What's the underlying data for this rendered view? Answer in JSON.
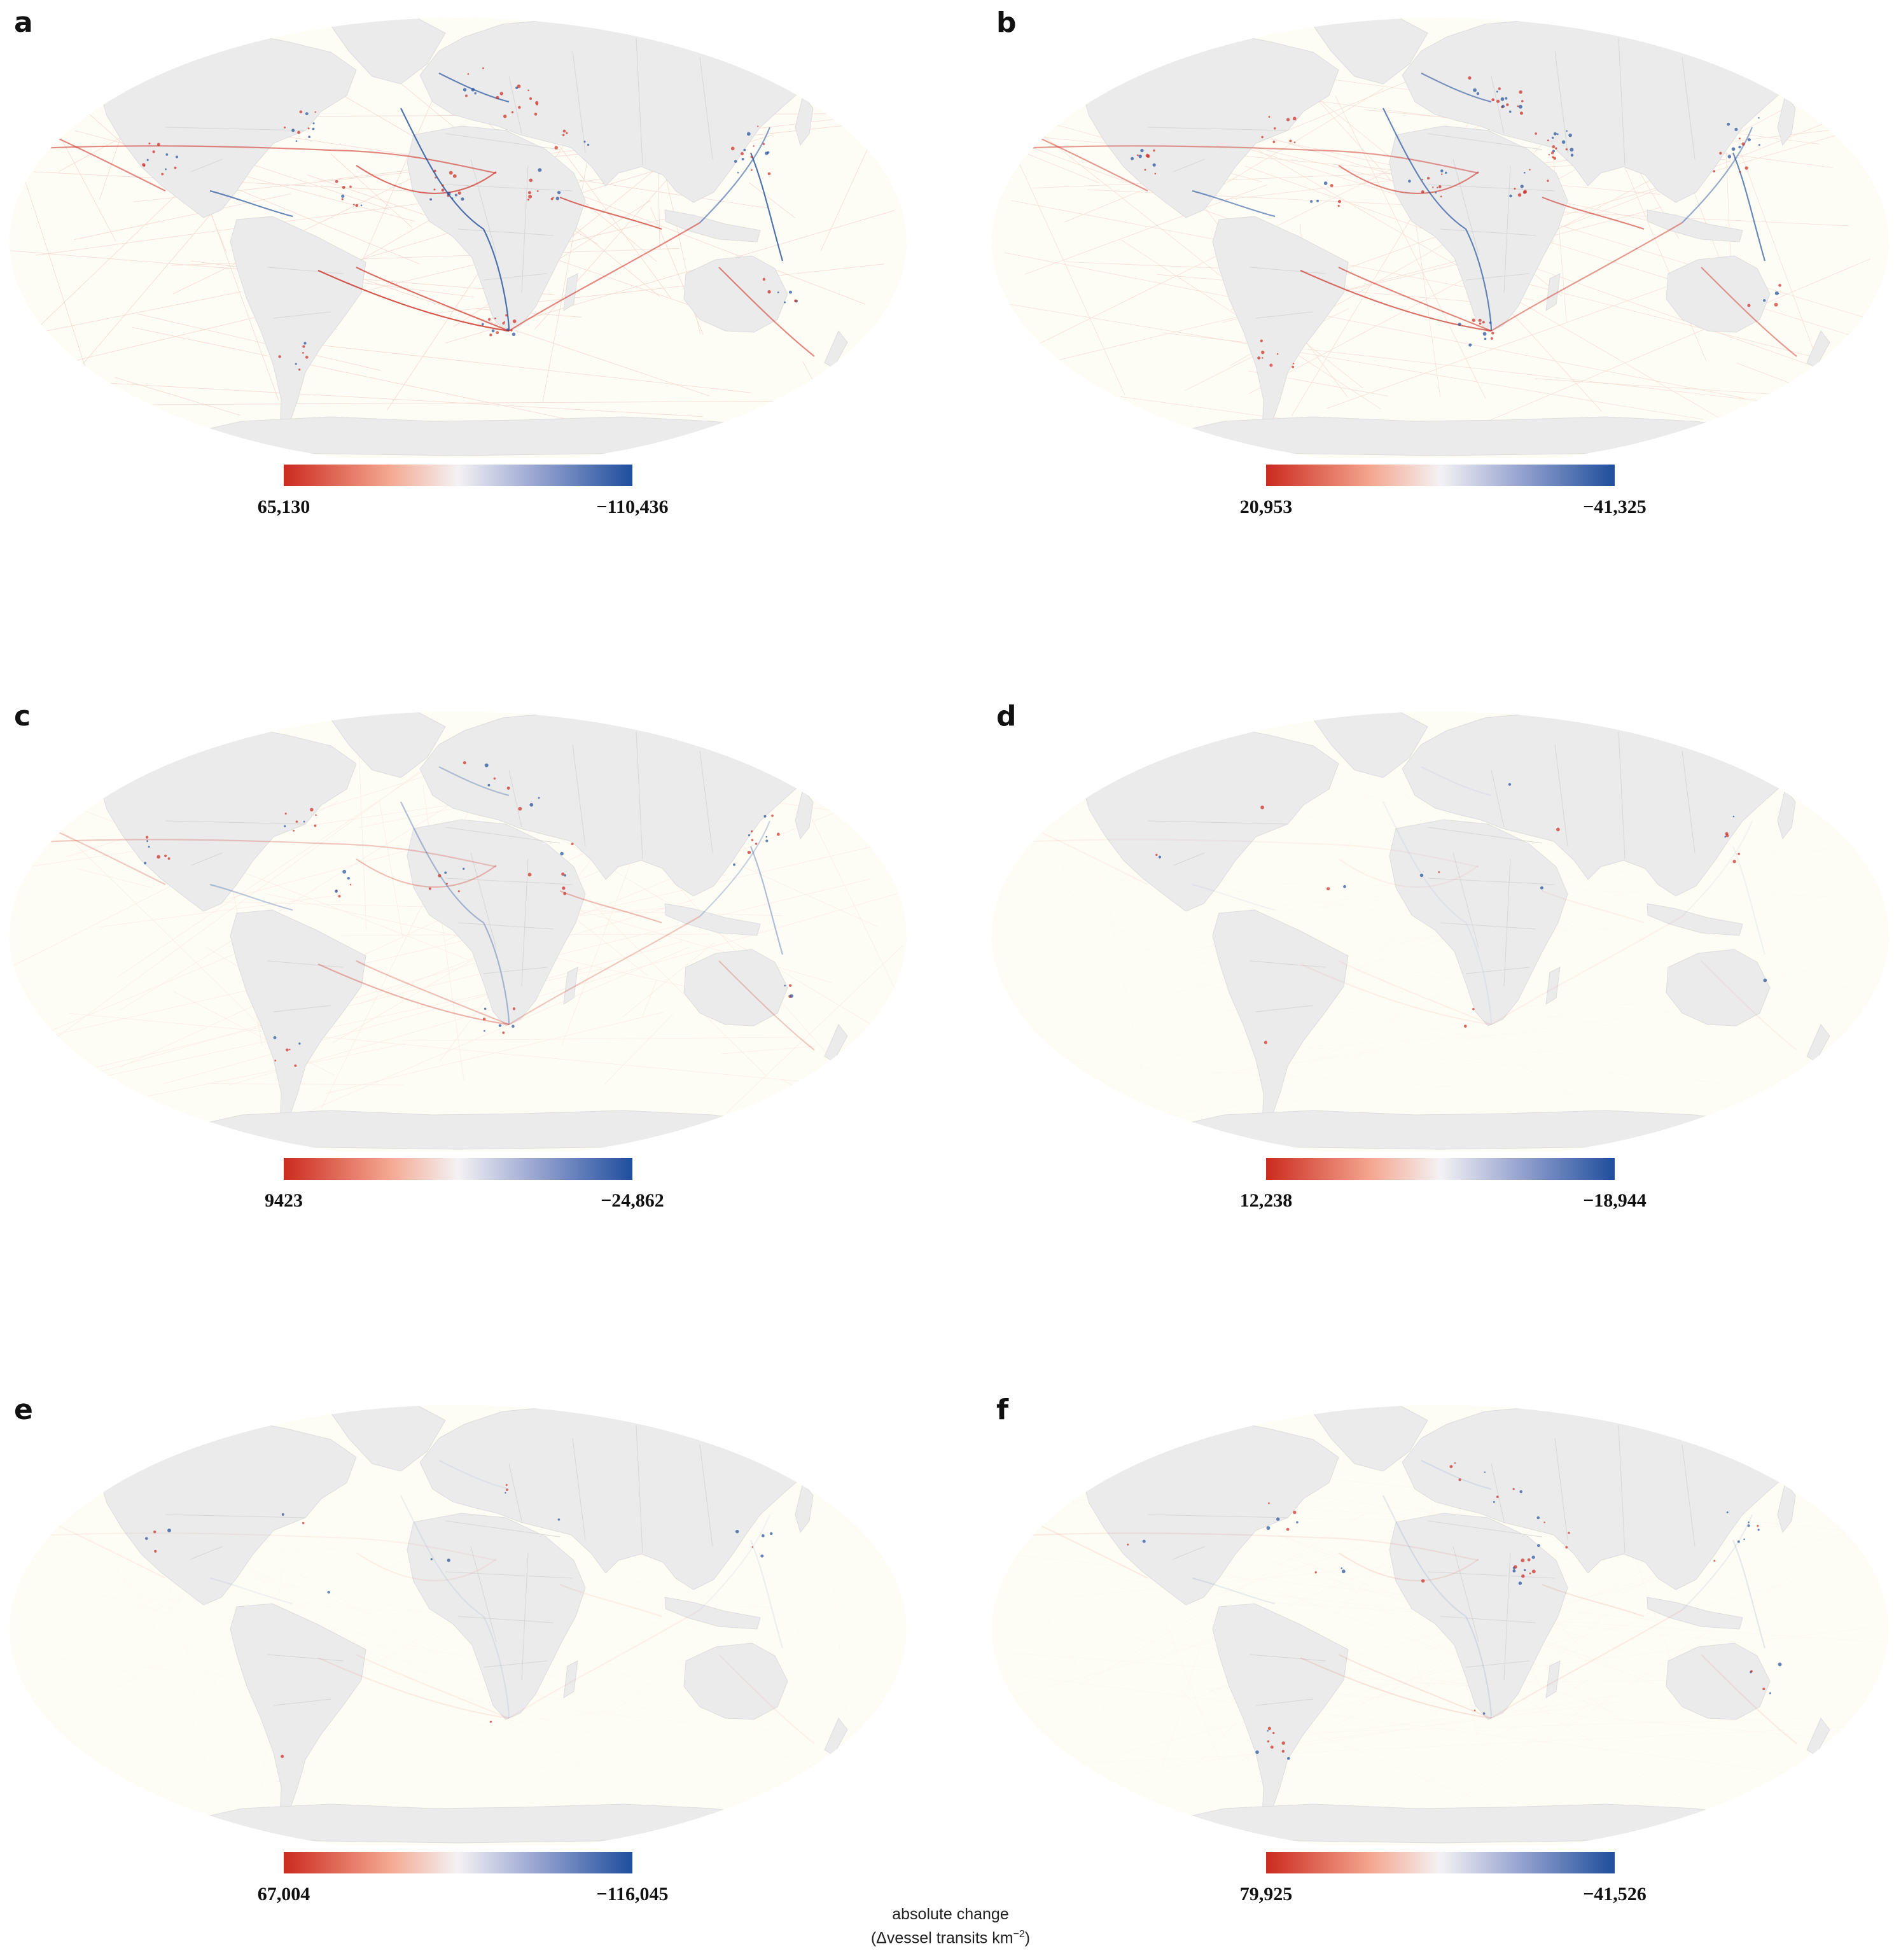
{
  "panels": [
    {
      "letter": "a",
      "min_label": "65,130",
      "max_label": "−110,436",
      "route_intensity": 1.0,
      "hotspots": "dense"
    },
    {
      "letter": "b",
      "min_label": "20,953",
      "max_label": "−41,325",
      "route_intensity": 0.85,
      "hotspots": "dense"
    },
    {
      "letter": "c",
      "min_label": "9423",
      "max_label": "−24,862",
      "route_intensity": 0.45,
      "hotspots": "moderate"
    },
    {
      "letter": "d",
      "min_label": "12,238",
      "max_label": "−18,944",
      "route_intensity": 0.08,
      "hotspots": "sparse"
    },
    {
      "letter": "e",
      "min_label": "67,004",
      "max_label": "−116,045",
      "route_intensity": 0.1,
      "hotspots": "sparse"
    },
    {
      "letter": "f",
      "min_label": "79,925",
      "max_label": "−41,526",
      "route_intensity": 0.15,
      "hotspots": "scattered"
    }
  ],
  "legend": {
    "caption_line1": "absolute change",
    "caption_line2_prefix": "(Δvessel transits km",
    "caption_superscript": "−2",
    "caption_line2_suffix": ")"
  },
  "colors": {
    "ocean": "#fefdf5",
    "land": "#ebebeb",
    "border": "#d6d6d6",
    "increase": "#cc2a1f",
    "decrease": "#1f4e9c",
    "neutral": "#f4f2f4"
  }
}
